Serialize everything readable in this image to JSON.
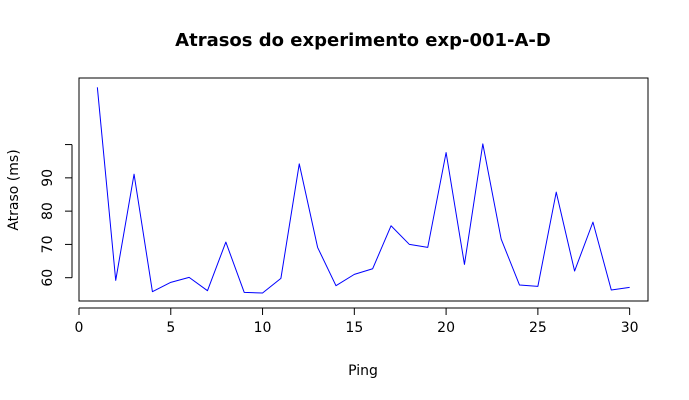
{
  "chart_data": {
    "type": "line",
    "title": "Atrasos do experimento exp-001-A-D",
    "xlabel": "Ping",
    "ylabel": "Atraso (ms)",
    "series": [
      {
        "color": "#0000ff",
        "x": [
          1,
          2,
          3,
          4,
          5,
          6,
          7,
          8,
          9,
          10,
          11,
          12,
          13,
          14,
          15,
          16,
          17,
          18,
          19,
          20,
          21,
          22,
          23,
          24,
          25,
          26,
          27,
          28,
          29,
          30
        ],
        "y": [
          117.2,
          59.2,
          91.1,
          55.8,
          58.6,
          60.1,
          56.1,
          70.7,
          55.6,
          55.4,
          59.8,
          94.2,
          69.1,
          57.6,
          61.0,
          62.7,
          75.6,
          70.0,
          69.1,
          97.6,
          64.0,
          100.2,
          71.6,
          57.8,
          57.4,
          85.7,
          62.0,
          76.7,
          56.3,
          57.1
        ]
      }
    ],
    "xlim": [
      0,
      31
    ],
    "ylim": [
      53,
      120
    ],
    "xticks": [
      0,
      5,
      10,
      15,
      20,
      25,
      30
    ],
    "yticks": [
      60,
      70,
      80,
      90,
      100
    ],
    "ytick_labels": [
      "60",
      "70",
      "80",
      "90",
      ""
    ],
    "grid": false,
    "legend": "none"
  }
}
